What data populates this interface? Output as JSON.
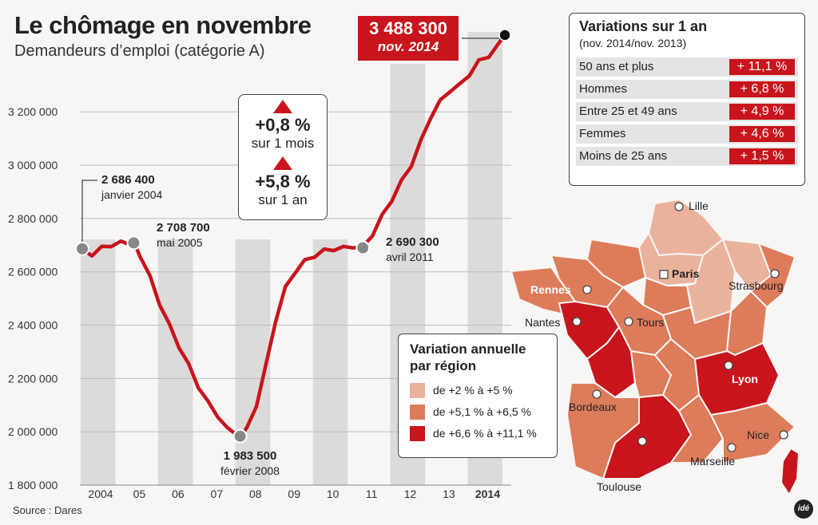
{
  "title": "Le chômage en novembre",
  "subtitle": "Demandeurs d’emploi (catégorie A)",
  "source": "Source : Dares",
  "logo_text": "idé",
  "colors": {
    "accent": "#c8141c",
    "light": "#eab29c",
    "medium": "#dd7c5a",
    "dark": "#c8141c"
  },
  "latest": {
    "value": "3 488 300",
    "date": "nov. 2014"
  },
  "monthly_change": {
    "value": "+0,8 %",
    "label": "sur 1 mois"
  },
  "annual_change": {
    "value": "+5,8 %",
    "label": "sur 1 an"
  },
  "annotations": [
    {
      "value": "2 686 400",
      "date": "janvier 2004"
    },
    {
      "value": "2 708 700",
      "date": "mai 2005"
    },
    {
      "value": "1 983 500",
      "date": "février 2008"
    },
    {
      "value": "2 690 300",
      "date": "avril 2011"
    }
  ],
  "variations": {
    "title": "Variations sur 1 an",
    "subtitle": "(nov. 2014/nov. 2013)",
    "rows": [
      {
        "label": "50 ans et plus",
        "value": "+ 11,1 %"
      },
      {
        "label": "Hommes",
        "value": "+ 6,8 %"
      },
      {
        "label": "Entre 25 et 49 ans",
        "value": "+ 4,9 %"
      },
      {
        "label": "Femmes",
        "value": "+ 4,6 %"
      },
      {
        "label": "Moins de 25 ans",
        "value": "+ 1,5 %"
      }
    ]
  },
  "map_legend": {
    "title_line1": "Variation annuelle",
    "title_line2": "par région",
    "items": [
      {
        "label": "de +2 % à +5 %",
        "color": "#eab29c"
      },
      {
        "label": "de +5,1 % à +6,5 %",
        "color": "#dd7c5a"
      },
      {
        "label": "de +6,6 % à +11,1 %",
        "color": "#c8141c"
      }
    ]
  },
  "cities": [
    "Lille",
    "Paris",
    "Strasbourg",
    "Rennes",
    "Nantes",
    "Tours",
    "Lyon",
    "Bordeaux",
    "Nice",
    "Marseille",
    "Toulouse"
  ],
  "chart_data": {
    "type": "line",
    "title": "Le chômage en novembre",
    "subtitle": "Demandeurs d’emploi (catégorie A)",
    "ylim": [
      1800000,
      3500000
    ],
    "yticks": [
      1800000,
      2000000,
      2200000,
      2400000,
      2600000,
      2800000,
      3000000,
      3200000
    ],
    "ytick_labels": [
      "1 800 000",
      "2 000 000",
      "2 200 000",
      "2 400 000",
      "2 600 000",
      "2 800 000",
      "3 000 000",
      "3 200 000"
    ],
    "xtick_labels": [
      "2004",
      "05",
      "06",
      "07",
      "08",
      "09",
      "10",
      "11",
      "12",
      "13",
      "2014"
    ],
    "grid": true,
    "series": [
      {
        "x": [
          2004.0,
          2004.25,
          2004.5,
          2004.75,
          2005.0,
          2005.25,
          2005.33,
          2005.5,
          2005.75,
          2006.0,
          2006.25,
          2006.5,
          2006.75,
          2007.0,
          2007.25,
          2007.5,
          2007.75,
          2008.08,
          2008.25,
          2008.5,
          2008.75,
          2009.0,
          2009.25,
          2009.5,
          2009.75,
          2010.0,
          2010.25,
          2010.5,
          2010.75,
          2011.0,
          2011.25,
          2011.5,
          2011.75,
          2012.0,
          2012.25,
          2012.5,
          2012.75,
          2013.0,
          2013.25,
          2013.5,
          2013.75,
          2014.0,
          2014.25,
          2014.5,
          2014.75,
          2014.92
        ],
        "y": [
          2686400,
          2665000,
          2690000,
          2700000,
          2710000,
          2706000,
          2708700,
          2660000,
          2580000,
          2480000,
          2400000,
          2320000,
          2250000,
          2170000,
          2110000,
          2060000,
          2010000,
          1983500,
          2010000,
          2100000,
          2250000,
          2420000,
          2540000,
          2600000,
          2640000,
          2660000,
          2680000,
          2685000,
          2690000,
          2695000,
          2690300,
          2740000,
          2810000,
          2870000,
          2940000,
          3000000,
          3090000,
          3180000,
          3240000,
          3280000,
          3300000,
          3340000,
          3390000,
          3410000,
          3450000,
          3488300
        ]
      }
    ]
  }
}
